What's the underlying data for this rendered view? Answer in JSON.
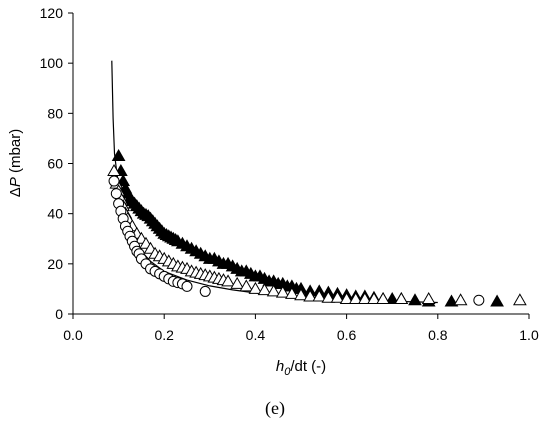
{
  "chart_data": {
    "type": "scatter",
    "xlabel": {
      "main": "h",
      "sub": "0",
      "rest": "/dt (-)"
    },
    "ylabel": {
      "delta": "Δ",
      "italic": "P",
      "rest": " (mbar)"
    },
    "xlim": [
      0,
      1.0
    ],
    "ylim": [
      0,
      120
    ],
    "xticks": [
      "0.0",
      "0.2",
      "0.4",
      "0.6",
      "0.8",
      "1.0"
    ],
    "yticks": [
      "0",
      "20",
      "40",
      "60",
      "80",
      "100",
      "120"
    ],
    "grid": false,
    "caption": "(e)",
    "series": [
      {
        "marker": "filled-triangle",
        "color": "#000000",
        "x": [
          0.1,
          0.105,
          0.11,
          0.115,
          0.12,
          0.125,
          0.13,
          0.135,
          0.14,
          0.145,
          0.15,
          0.155,
          0.16,
          0.165,
          0.17,
          0.175,
          0.18,
          0.185,
          0.19,
          0.195,
          0.2,
          0.205,
          0.21,
          0.215,
          0.22,
          0.225,
          0.23,
          0.24,
          0.25,
          0.26,
          0.27,
          0.28,
          0.29,
          0.3,
          0.31,
          0.32,
          0.33,
          0.34,
          0.35,
          0.36,
          0.37,
          0.38,
          0.39,
          0.4,
          0.41,
          0.42,
          0.43,
          0.44,
          0.45,
          0.46,
          0.47,
          0.48,
          0.49,
          0.5,
          0.52,
          0.54,
          0.56,
          0.58,
          0.6,
          0.62,
          0.64,
          0.66,
          0.68,
          0.7,
          0.72,
          0.75,
          0.78,
          0.83,
          0.93
        ],
        "y": [
          63,
          57,
          53,
          50,
          48,
          46,
          45,
          44,
          43,
          42,
          41,
          40,
          39.5,
          39,
          38,
          37,
          36,
          35,
          34,
          33,
          32,
          31.5,
          31,
          30.5,
          30,
          29.5,
          29,
          28,
          27,
          26,
          25,
          24,
          23,
          22,
          22,
          21,
          20,
          20,
          19,
          18,
          17,
          17,
          16,
          15,
          15,
          14,
          13,
          13,
          12,
          12,
          11,
          11,
          10,
          10,
          9,
          9,
          8.5,
          8,
          7.5,
          7,
          7,
          6.5,
          6,
          6,
          6,
          5.5,
          5,
          5,
          5
        ]
      },
      {
        "marker": "open-triangle",
        "color": "#000000",
        "x": [
          0.09,
          0.095,
          0.1,
          0.105,
          0.11,
          0.115,
          0.12,
          0.13,
          0.14,
          0.15,
          0.16,
          0.17,
          0.18,
          0.19,
          0.2,
          0.21,
          0.22,
          0.23,
          0.24,
          0.25,
          0.26,
          0.27,
          0.28,
          0.29,
          0.3,
          0.31,
          0.32,
          0.33,
          0.34,
          0.36,
          0.38,
          0.4,
          0.42,
          0.44,
          0.46,
          0.48,
          0.5,
          0.52,
          0.54,
          0.56,
          0.58,
          0.6,
          0.62,
          0.64,
          0.66,
          0.68,
          0.72,
          0.78,
          0.85,
          0.98
        ],
        "y": [
          57,
          52,
          49,
          46,
          43,
          40,
          38,
          35,
          32,
          30,
          28,
          26,
          24,
          23,
          22,
          21,
          20,
          19,
          18.5,
          18,
          17,
          16.5,
          16,
          15.5,
          15,
          14.5,
          14,
          13.5,
          13,
          12,
          11,
          10,
          9.5,
          9,
          8.5,
          8,
          7.5,
          7,
          7,
          6.5,
          6.5,
          6,
          6,
          6,
          6,
          6,
          6,
          6,
          5.5,
          5.5
        ]
      },
      {
        "marker": "open-circle",
        "color": "#000000",
        "x": [
          0.09,
          0.095,
          0.1,
          0.105,
          0.11,
          0.115,
          0.12,
          0.125,
          0.13,
          0.135,
          0.14,
          0.145,
          0.15,
          0.16,
          0.17,
          0.18,
          0.19,
          0.2,
          0.21,
          0.22,
          0.23,
          0.24,
          0.25,
          0.29,
          0.89
        ],
        "y": [
          53,
          48,
          44,
          41,
          38,
          35,
          33,
          31,
          29,
          27,
          25,
          24,
          22,
          20,
          18,
          17,
          16,
          15,
          14,
          13,
          12.5,
          12,
          11,
          9,
          5.5
        ]
      }
    ],
    "fit_line": {
      "x": [
        0.085,
        0.088,
        0.091,
        0.095,
        0.1,
        0.11,
        0.12,
        0.13,
        0.15,
        0.17,
        0.2,
        0.25,
        0.3,
        0.35,
        0.4,
        0.45,
        0.5,
        0.6,
        0.7,
        0.8
      ],
      "y": [
        101,
        78,
        64,
        58,
        51,
        42,
        36,
        31,
        25,
        21,
        17,
        13.5,
        11.2,
        9.6,
        8.4,
        7.5,
        6.8,
        5.8,
        5.1,
        4.6
      ]
    }
  }
}
